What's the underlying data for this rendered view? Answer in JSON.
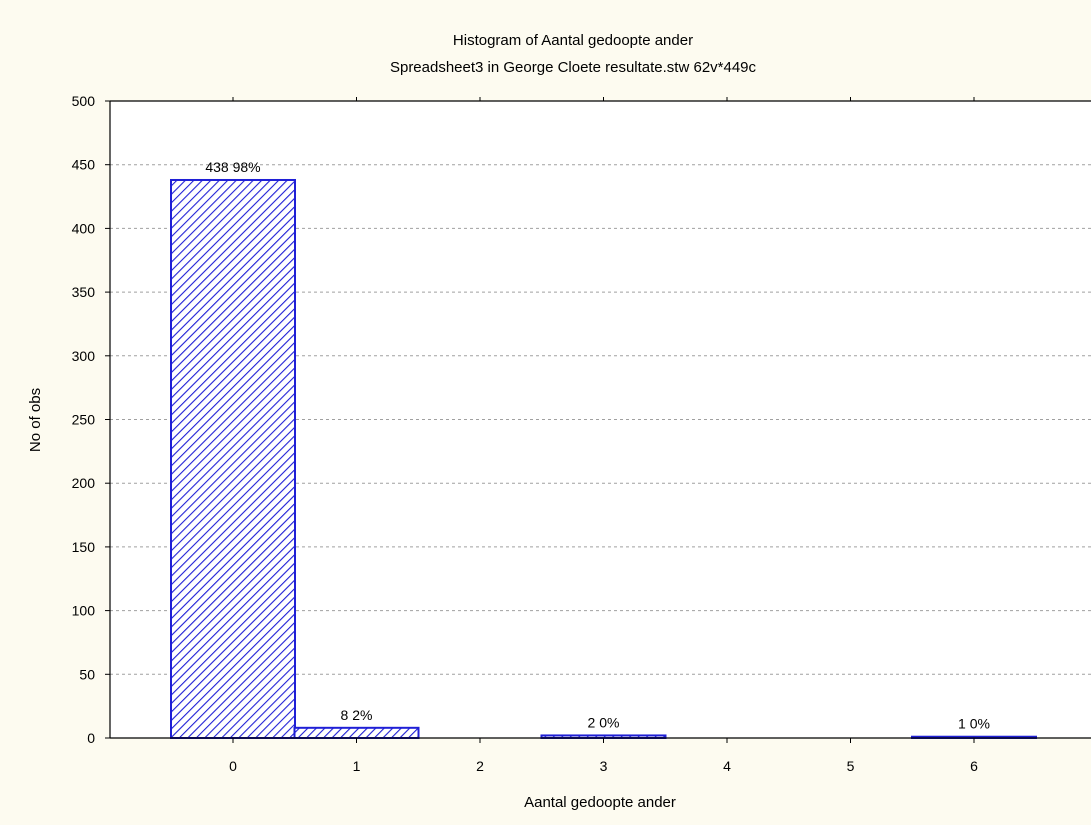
{
  "colors": {
    "background": "#fdfbf0",
    "plot_background": "#ffffff",
    "bar_stroke": "#1f1fd6",
    "bar_hatch": "#1f1fd6",
    "grid": "#a0a0a0"
  },
  "chart_data": {
    "type": "bar",
    "title": "Histogram of Aantal gedoopte ander",
    "subtitle": "Spreadsheet3 in George Cloete resultate.stw 62v*449c",
    "xlabel": "Aantal gedoopte ander",
    "ylabel": "No of obs",
    "categories": [
      "0",
      "1",
      "2",
      "3",
      "4",
      "5",
      "6"
    ],
    "values": [
      438,
      8,
      0,
      2,
      0,
      0,
      1
    ],
    "data_labels": [
      "438 98%",
      "8 2%",
      "",
      "2 0%",
      "",
      "",
      "1 0%"
    ],
    "ylim": [
      0,
      500
    ],
    "yticks": [
      0,
      50,
      100,
      150,
      200,
      250,
      300,
      350,
      400,
      450,
      500
    ],
    "grid": true,
    "bar_fill": "diagonal-hatch"
  }
}
